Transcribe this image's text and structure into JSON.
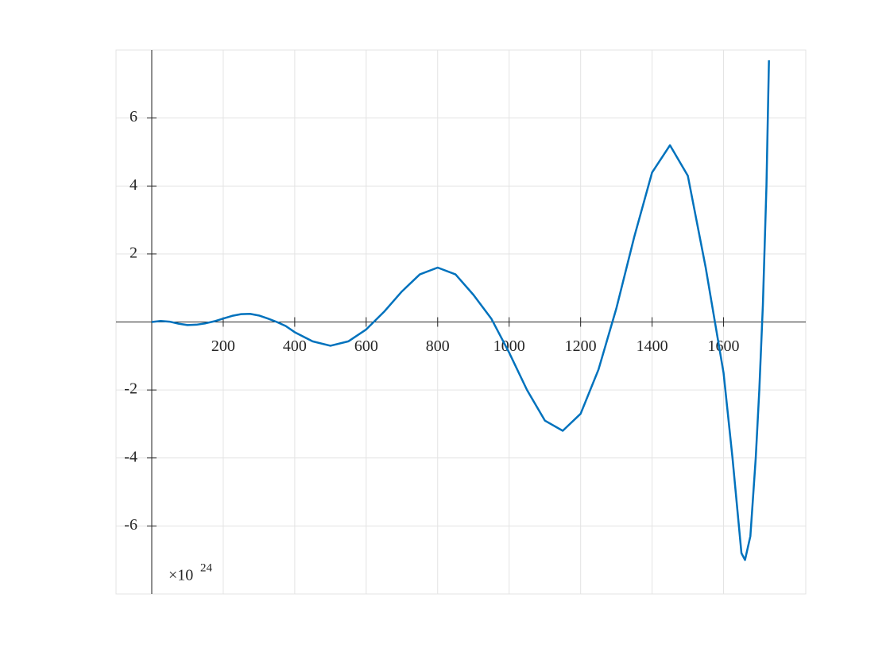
{
  "chart_data": {
    "type": "line",
    "x": [
      0,
      25,
      50,
      75,
      100,
      125,
      150,
      175,
      200,
      225,
      250,
      275,
      300,
      325,
      350,
      375,
      400,
      450,
      500,
      550,
      600,
      650,
      700,
      750,
      800,
      850,
      900,
      950,
      1000,
      1050,
      1100,
      1150,
      1200,
      1250,
      1300,
      1350,
      1400,
      1450,
      1500,
      1550,
      1600,
      1625,
      1650,
      1660,
      1675,
      1690,
      1700,
      1710,
      1720,
      1727
    ],
    "series": [
      {
        "color": "#0072bd",
        "values": [
          0,
          0.03,
          0.01,
          -0.05,
          -0.09,
          -0.08,
          -0.04,
          0.02,
          0.1,
          0.18,
          0.23,
          0.24,
          0.19,
          0.1,
          0,
          -0.12,
          -0.3,
          -0.57,
          -0.7,
          -0.57,
          -0.22,
          0.3,
          0.9,
          1.4,
          1.6,
          1.4,
          0.8,
          0.1,
          -0.9,
          -2.0,
          -2.9,
          -3.2,
          -2.7,
          -1.4,
          0.4,
          2.5,
          4.4,
          5.2,
          4.3,
          1.6,
          -1.5,
          -4.0,
          -6.8,
          -7.0,
          -6.3,
          -4.0,
          -2.0,
          0.5,
          4.0,
          7.7
        ]
      }
    ],
    "xlim": [
      -100,
      1830
    ],
    "ylim": [
      -8,
      8
    ],
    "xticks": [
      200,
      400,
      600,
      800,
      1000,
      1200,
      1400,
      1600
    ],
    "yticks": [
      -6,
      -4,
      -2,
      2,
      4,
      6
    ],
    "grid": true,
    "multiplier": {
      "base": "×10",
      "exponent": "24"
    }
  }
}
